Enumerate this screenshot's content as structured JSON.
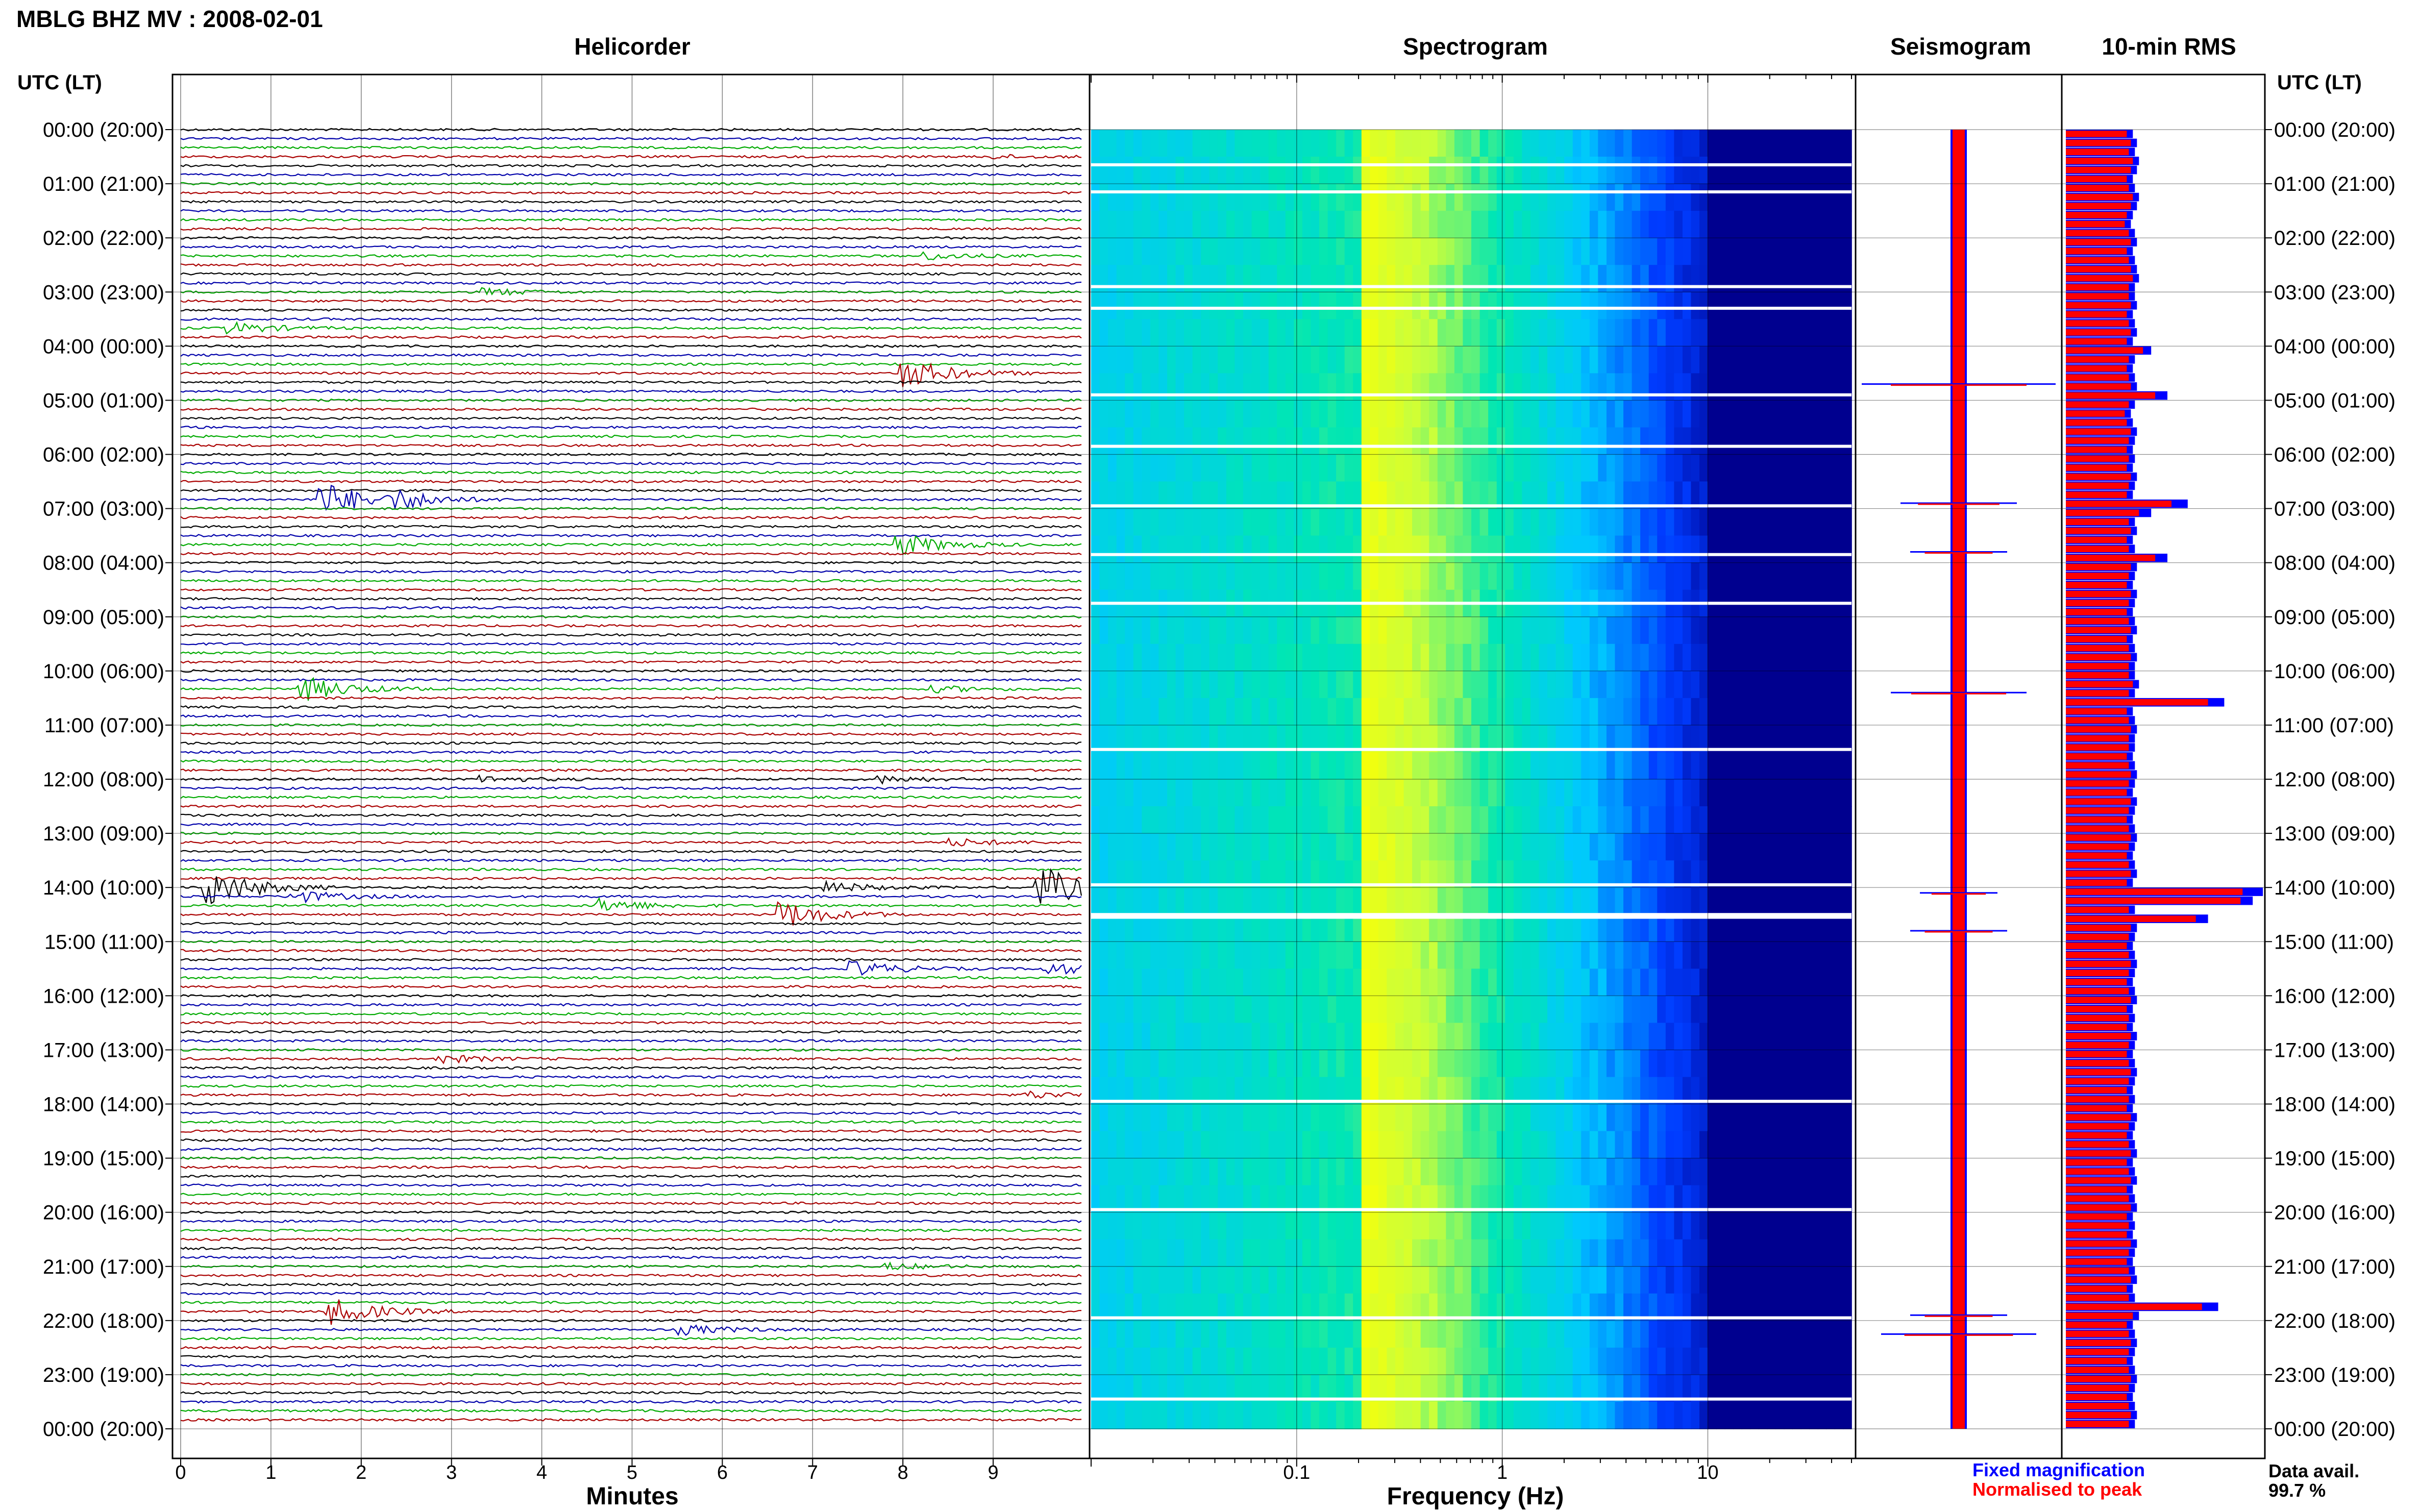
{
  "title": "MBLG BHZ MV : 2008-02-01",
  "panels": {
    "helicorder": "Helicorder",
    "spectrogram": "Spectrogram",
    "seismogram": "Seismogram",
    "rms": "10-min RMS"
  },
  "utc_header": "UTC (LT)",
  "utc_header_right": "UTC (LT)",
  "helicorder_xlabel": "Minutes",
  "spectrogram_xlabel": "Frequency (Hz)",
  "legend": {
    "fixed": "Fixed magnification",
    "normalised": "Normalised to peak",
    "fixed_color": "#0000ff",
    "normalised_color": "#ff0000"
  },
  "data_avail_label": "Data avail.",
  "data_avail_value": "99.7 %",
  "colors": {
    "trace_cycle": [
      "#000000",
      "#0000aa",
      "#00aa00",
      "#aa0000"
    ],
    "spectrogram_low": "#00008f",
    "spectrogram_high": "#ffff00"
  },
  "chart_data": [
    {
      "type": "line",
      "name": "helicorder",
      "title": "Helicorder",
      "xlabel": "Minutes",
      "xlim": [
        0,
        10
      ],
      "x_ticks": [
        "0",
        "1",
        "2",
        "3",
        "4",
        "5",
        "6",
        "7",
        "8",
        "9"
      ],
      "y_ticks": [
        "00:00 (20:00)",
        "01:00 (21:00)",
        "02:00 (22:00)",
        "03:00 (23:00)",
        "04:00 (00:00)",
        "05:00 (01:00)",
        "06:00 (02:00)",
        "07:00 (03:00)",
        "08:00 (04:00)",
        "09:00 (05:00)",
        "10:00 (06:00)",
        "11:00 (07:00)",
        "12:00 (08:00)",
        "13:00 (09:00)",
        "14:00 (10:00)",
        "15:00 (11:00)",
        "16:00 (12:00)",
        "17:00 (13:00)",
        "18:00 (14:00)",
        "19:00 (15:00)",
        "20:00 (16:00)",
        "21:00 (17:00)",
        "22:00 (18:00)",
        "23:00 (19:00)",
        "00:00 (20:00)"
      ],
      "traces_per_hour": 6,
      "events": [
        {
          "utc_hour": 0.45,
          "minute": 9.0,
          "amp": 0.3
        },
        {
          "utc_hour": 2.3,
          "minute": 8.3,
          "amp": 0.6
        },
        {
          "utc_hour": 3.0,
          "minute": 3.4,
          "amp": 0.6
        },
        {
          "utc_hour": 3.65,
          "minute": 0.6,
          "amp": 0.9
        },
        {
          "utc_hour": 4.5,
          "minute": 8.05,
          "amp": 2.5
        },
        {
          "utc_hour": 6.8,
          "minute": 1.6,
          "amp": 3.0
        },
        {
          "utc_hour": 6.82,
          "minute": 2.4,
          "amp": 1.4
        },
        {
          "utc_hour": 7.65,
          "minute": 8.0,
          "amp": 1.8
        },
        {
          "utc_hour": 10.3,
          "minute": 1.4,
          "amp": 2.0
        },
        {
          "utc_hour": 10.3,
          "minute": 8.4,
          "amp": 0.5
        },
        {
          "utc_hour": 12.0,
          "minute": 3.4,
          "amp": 0.5
        },
        {
          "utc_hour": 12.0,
          "minute": 7.8,
          "amp": 0.6
        },
        {
          "utc_hour": 13.15,
          "minute": 8.6,
          "amp": 0.6
        },
        {
          "utc_hour": 14.0,
          "minute": 0.35,
          "amp": 3.2
        },
        {
          "utc_hour": 14.0,
          "minute": 9.55,
          "amp": 3.6
        },
        {
          "utc_hour": 14.15,
          "minute": 1.3,
          "amp": 1.0
        },
        {
          "utc_hour": 14.3,
          "minute": 4.7,
          "amp": 1.1
        },
        {
          "utc_hour": 14.5,
          "minute": 6.7,
          "amp": 2.3
        },
        {
          "utc_hour": 14.0,
          "minute": 7.2,
          "amp": 0.9
        },
        {
          "utc_hour": 15.5,
          "minute": 7.5,
          "amp": 1.2
        },
        {
          "utc_hour": 15.5,
          "minute": 9.6,
          "amp": 1.1
        },
        {
          "utc_hour": 17.15,
          "minute": 2.9,
          "amp": 0.7
        },
        {
          "utc_hour": 17.8,
          "minute": 9.4,
          "amp": 0.6
        },
        {
          "utc_hour": 21.0,
          "minute": 7.9,
          "amp": 0.5
        },
        {
          "utc_hour": 21.8,
          "minute": 1.7,
          "amp": 2.2
        },
        {
          "utc_hour": 22.2,
          "minute": 5.6,
          "amp": 0.8
        }
      ]
    },
    {
      "type": "heatmap",
      "name": "spectrogram",
      "title": "Spectrogram",
      "xlabel": "Frequency (Hz)",
      "x_scale": "log",
      "xlim": [
        0.01,
        50
      ],
      "x_ticks": [
        0.1,
        1,
        10
      ],
      "x_tick_labels": [
        "0.1",
        "1",
        "10"
      ],
      "ylim_hours": [
        0,
        24
      ],
      "energy_peak_hz": 0.2,
      "data_gap_hours": [
        0.65,
        1.15,
        2.9,
        3.3,
        4.9,
        5.85,
        6.95,
        7.85,
        8.75,
        11.45,
        13.95,
        14.5,
        14.55,
        17.95,
        19.95,
        21.95,
        23.45
      ]
    },
    {
      "type": "line",
      "name": "seismogram",
      "title": "Seismogram",
      "ylim_hours": [
        0,
        24
      ],
      "series": [
        {
          "name": "Fixed magnification",
          "color": "#0000ff"
        },
        {
          "name": "Normalised to peak",
          "color": "#ff0000"
        }
      ],
      "spikes": [
        {
          "utc_hour": 4.7,
          "amp": 1.0
        },
        {
          "utc_hour": 6.9,
          "amp": 0.6
        },
        {
          "utc_hour": 7.8,
          "amp": 0.5
        },
        {
          "utc_hour": 10.4,
          "amp": 0.7
        },
        {
          "utc_hour": 14.1,
          "amp": 0.4
        },
        {
          "utc_hour": 14.8,
          "amp": 0.5
        },
        {
          "utc_hour": 21.9,
          "amp": 0.5
        },
        {
          "utc_hour": 22.25,
          "amp": 0.8
        }
      ]
    },
    {
      "type": "bar",
      "name": "10-min RMS",
      "title": "10-min RMS",
      "orientation": "horizontal",
      "bins_per_hour": 6,
      "series": [
        {
          "name": "Fixed magnification",
          "color": "#0000ff",
          "values": [
            0.33,
            0.35,
            0.34,
            0.36,
            0.35,
            0.33,
            0.34,
            0.36,
            0.35,
            0.33,
            0.32,
            0.34,
            0.35,
            0.33,
            0.34,
            0.35,
            0.36,
            0.34,
            0.34,
            0.35,
            0.33,
            0.34,
            0.35,
            0.33,
            0.42,
            0.34,
            0.33,
            0.34,
            0.35,
            0.5,
            0.34,
            0.32,
            0.33,
            0.35,
            0.34,
            0.33,
            0.34,
            0.33,
            0.35,
            0.34,
            0.33,
            0.6,
            0.42,
            0.34,
            0.35,
            0.33,
            0.34,
            0.5,
            0.35,
            0.34,
            0.33,
            0.35,
            0.34,
            0.33,
            0.34,
            0.35,
            0.33,
            0.34,
            0.35,
            0.34,
            0.34,
            0.36,
            0.34,
            0.78,
            0.33,
            0.34,
            0.35,
            0.34,
            0.34,
            0.33,
            0.34,
            0.35,
            0.34,
            0.33,
            0.35,
            0.34,
            0.33,
            0.34,
            0.35,
            0.34,
            0.33,
            0.34,
            0.35,
            0.33,
            0.97,
            0.92,
            0.34,
            0.7,
            0.35,
            0.34,
            0.33,
            0.34,
            0.35,
            0.34,
            0.33,
            0.34,
            0.35,
            0.33,
            0.34,
            0.33,
            0.35,
            0.34,
            0.33,
            0.34,
            0.35,
            0.34,
            0.33,
            0.34,
            0.33,
            0.35,
            0.34,
            0.33,
            0.34,
            0.35,
            0.33,
            0.34,
            0.35,
            0.33,
            0.34,
            0.35,
            0.33,
            0.34,
            0.33,
            0.35,
            0.34,
            0.33,
            0.34,
            0.35,
            0.33,
            0.34,
            0.75,
            0.36,
            0.33,
            0.34,
            0.35,
            0.34,
            0.33,
            0.34,
            0.35,
            0.34,
            0.33,
            0.34,
            0.35,
            0.34
          ]
        },
        {
          "name": "Normalised to peak",
          "color": "#ff0000",
          "values": [
            0.3,
            0.32,
            0.31,
            0.33,
            0.32,
            0.3,
            0.31,
            0.33,
            0.32,
            0.3,
            0.29,
            0.31,
            0.32,
            0.3,
            0.31,
            0.32,
            0.33,
            0.31,
            0.31,
            0.32,
            0.3,
            0.31,
            0.32,
            0.3,
            0.38,
            0.31,
            0.3,
            0.31,
            0.32,
            0.44,
            0.31,
            0.29,
            0.3,
            0.32,
            0.31,
            0.3,
            0.31,
            0.3,
            0.32,
            0.31,
            0.3,
            0.52,
            0.36,
            0.31,
            0.32,
            0.3,
            0.31,
            0.44,
            0.32,
            0.31,
            0.3,
            0.32,
            0.31,
            0.3,
            0.31,
            0.32,
            0.3,
            0.31,
            0.32,
            0.31,
            0.31,
            0.33,
            0.31,
            0.7,
            0.3,
            0.31,
            0.32,
            0.31,
            0.31,
            0.3,
            0.31,
            0.32,
            0.31,
            0.3,
            0.32,
            0.31,
            0.3,
            0.31,
            0.32,
            0.31,
            0.3,
            0.31,
            0.32,
            0.3,
            0.87,
            0.86,
            0.31,
            0.64,
            0.32,
            0.31,
            0.3,
            0.31,
            0.32,
            0.31,
            0.3,
            0.31,
            0.32,
            0.3,
            0.31,
            0.3,
            0.32,
            0.31,
            0.3,
            0.31,
            0.32,
            0.31,
            0.3,
            0.31,
            0.3,
            0.32,
            0.31,
            0.3,
            0.31,
            0.32,
            0.3,
            0.31,
            0.32,
            0.3,
            0.31,
            0.32,
            0.3,
            0.31,
            0.3,
            0.32,
            0.31,
            0.3,
            0.31,
            0.32,
            0.3,
            0.31,
            0.67,
            0.33,
            0.3,
            0.31,
            0.32,
            0.31,
            0.3,
            0.31,
            0.32,
            0.31,
            0.3,
            0.31,
            0.32,
            0.31
          ]
        }
      ]
    }
  ]
}
